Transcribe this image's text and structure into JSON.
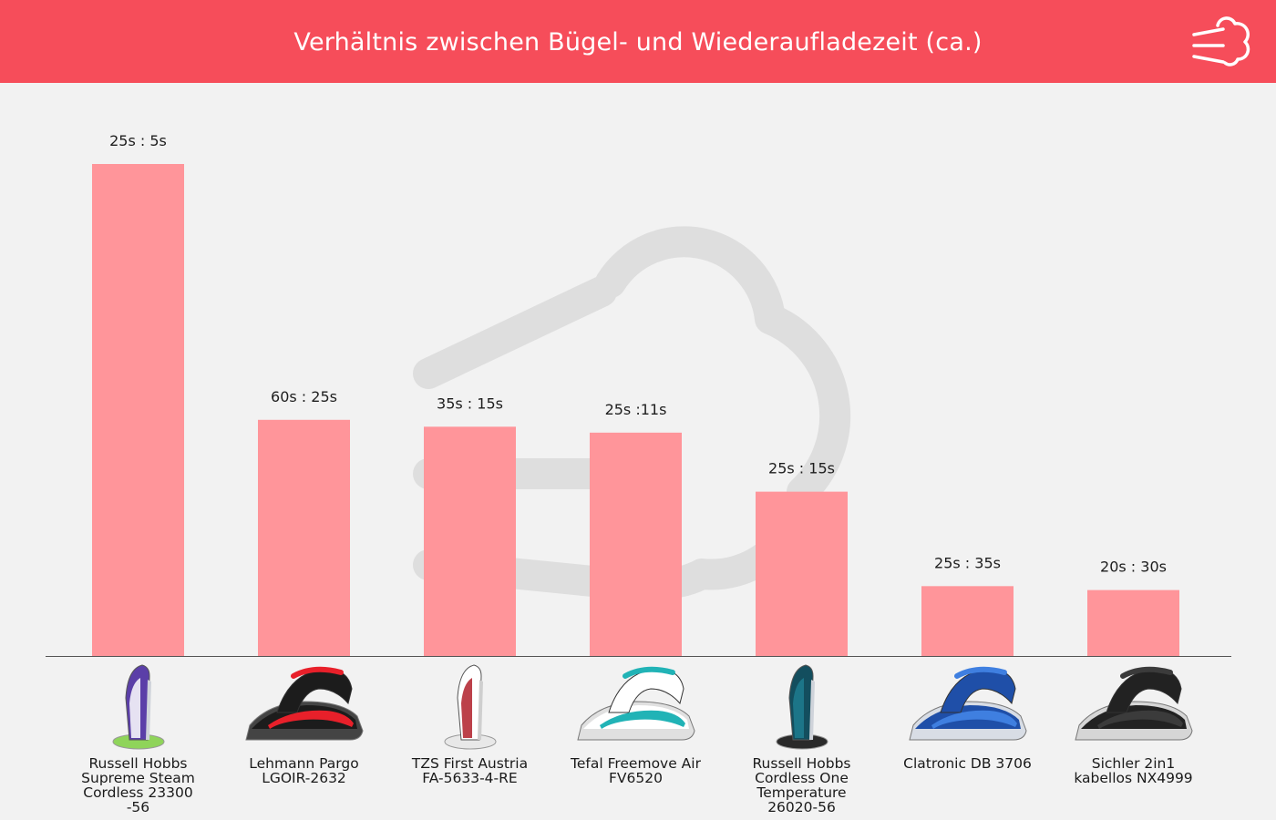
{
  "header": {
    "title": "Verhältnis zwischen Bügel- und Wiederaufladezeit (ca.)",
    "logo_icon": "steam-cloud-icon",
    "background": "#f64d5a"
  },
  "chart_data": {
    "type": "bar",
    "title": "Verhältnis zwischen Bügel- und Wiederaufladezeit (ca.)",
    "categories": [
      "Russell Hobbs Supreme Steam Cordless 23300 -56",
      "Lehmann Pargo LGOIR-2632",
      "TZS First Austria FA-5633-4-RE",
      "Tefal Freemove Air FV6520",
      "Russell Hobbs Cordless One Temperature 26020-56",
      "Clatronic DB 3706",
      "Sichler 2in1 kabellos NX4999"
    ],
    "value_labels": [
      "25s : 5s",
      "60s : 25s",
      "35s : 15s",
      "25s :11s",
      "25s : 15s",
      "25s : 35s",
      "20s : 30s"
    ],
    "values": [
      5.0,
      2.4,
      2.33,
      2.27,
      1.67,
      0.71,
      0.67
    ],
    "ylim": [
      0,
      5.0
    ],
    "grid": false,
    "bar_color": "#ff959a",
    "product_icons": [
      "steam-iron-purple-icon",
      "steam-iron-red-black-icon",
      "steam-iron-white-red-icon",
      "steam-iron-turquoise-icon",
      "steam-iron-dark-teal-icon",
      "steam-iron-blue-icon",
      "steam-iron-black-blue-icon"
    ]
  }
}
